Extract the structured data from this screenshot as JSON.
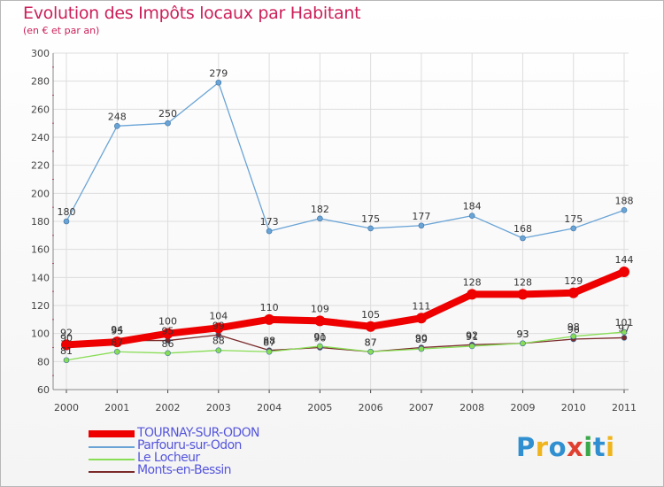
{
  "title": "Evolution des Impôts locaux par Habitant",
  "subtitle": "(en € et par an)",
  "logo": {
    "text": "Proxiti",
    "colors": [
      "#2f8fd0",
      "#f0b41c",
      "#2f8fd0",
      "#e0402f",
      "#3aa84a",
      "#2f8fd0",
      "#f0b41c"
    ]
  },
  "colors": {
    "title": "#cc1f5a",
    "axis": "#444444",
    "grid": "#dddddd",
    "ytick_marks": "#cc1f5a"
  },
  "chart_data": {
    "type": "line",
    "title": "Evolution des Impôts locaux par Habitant",
    "subtitle": "(en € et par an)",
    "xlabel": "",
    "ylabel": "",
    "ylim": [
      60,
      300
    ],
    "yticks": [
      60,
      80,
      100,
      120,
      140,
      160,
      180,
      200,
      220,
      240,
      260,
      280,
      300
    ],
    "x": [
      "2000",
      "2001",
      "2002",
      "2003",
      "2004",
      "2005",
      "2006",
      "2007",
      "2008",
      "2009",
      "2010",
      "2011"
    ],
    "legend_position": "bottom-left",
    "series": [
      {
        "name": "TOURNAY-SUR-ODON",
        "color": "#ee0000",
        "labelColor": "#5555dd",
        "width": 8,
        "markerRadius": 6,
        "values": [
          92,
          94,
          100,
          104,
          110,
          109,
          105,
          111,
          128,
          128,
          129,
          144
        ]
      },
      {
        "name": "Parfouru-sur-Odon",
        "color": "#6aa4d6",
        "labelColor": "#5555dd",
        "width": 1.3,
        "markerRadius": 3,
        "values": [
          180,
          248,
          250,
          279,
          173,
          182,
          175,
          177,
          184,
          168,
          175,
          188
        ]
      },
      {
        "name": "Le Locheur",
        "color": "#88dd55",
        "labelColor": "#5555dd",
        "width": 1.3,
        "markerRadius": 3,
        "values": [
          81,
          87,
          86,
          88,
          87,
          91,
          87,
          89,
          91,
          93,
          98,
          101
        ]
      },
      {
        "name": "Monts-en-Bessin",
        "color": "#7a2a2a",
        "labelColor": "#5555dd",
        "width": 1.3,
        "markerRadius": 3,
        "values": [
          90,
          95,
          95,
          99,
          88,
          90,
          87,
          90,
          92,
          93,
          96,
          97
        ]
      }
    ]
  }
}
